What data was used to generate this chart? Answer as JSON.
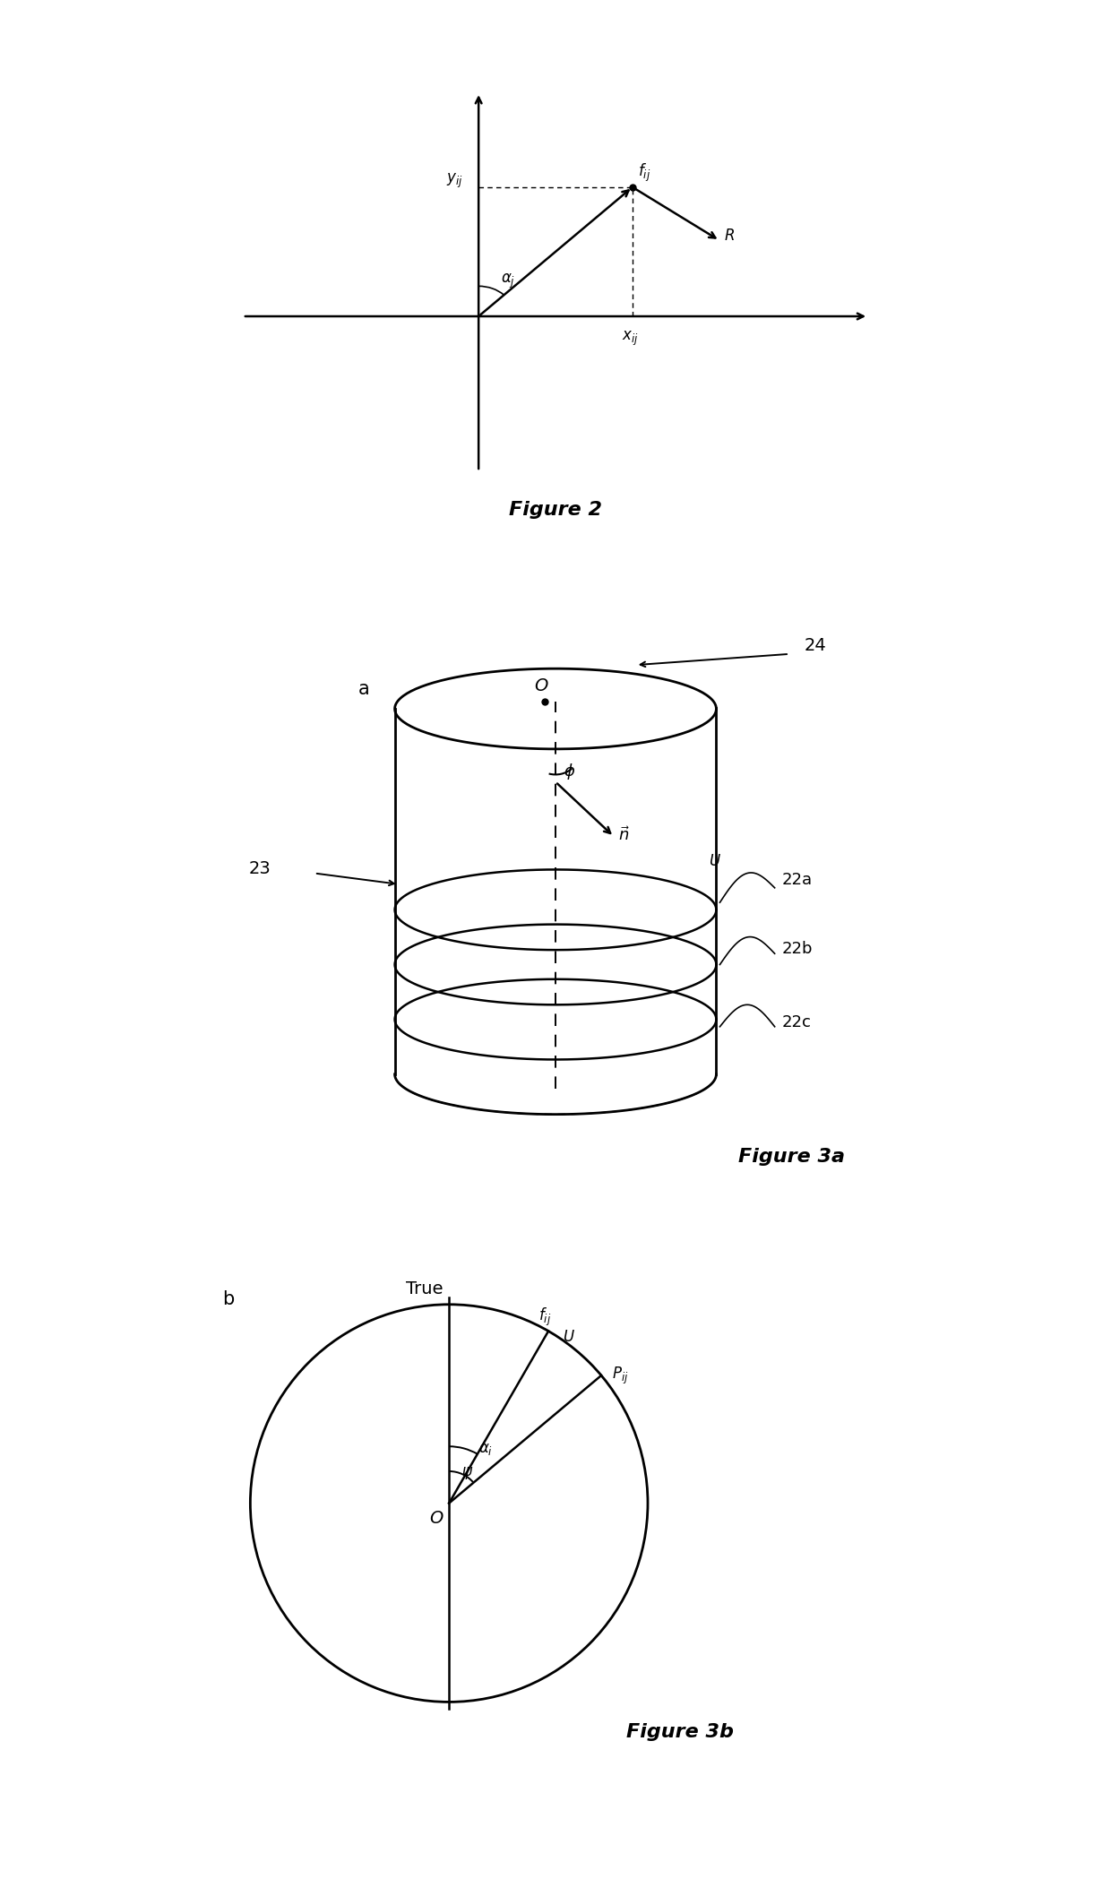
{
  "fig_width": 12.4,
  "fig_height": 20.97,
  "bg_color": "#ffffff",
  "line_color": "#000000",
  "fig2_caption": "Figure 2",
  "fig3a_caption": "Figure 3a",
  "fig3b_caption": "Figure 3b",
  "label_a": "a",
  "label_b": "b",
  "label_23": "23",
  "label_24": "24",
  "label_22a": "22a",
  "label_22b": "22b",
  "label_22c": "22c",
  "label_O_cyl": "O",
  "label_O_circle": "O",
  "label_phi": "ϕ",
  "label_U_cyl": "U",
  "label_U_circle": "U",
  "label_True": "True",
  "label_psi": "ψ",
  "label_Pij": "P",
  "label_fij_circle": "f",
  "label_yij": "y",
  "label_xij": "x",
  "label_fij_fig2": "f",
  "label_alphaj_fig2": "α",
  "label_R": "R"
}
